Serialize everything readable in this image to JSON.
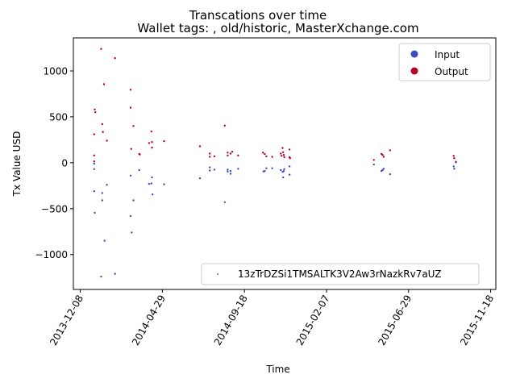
{
  "chart_data": {
    "type": "scatter",
    "title": "Transcations over time",
    "subtitle": "Wallet tags: , old/historic, MasterXchange.com",
    "xlabel": "Time",
    "ylabel": "Tx Value USD",
    "xlim": [
      "2013-11-26",
      "2015-11-27"
    ],
    "ylim": [
      -1380,
      1360
    ],
    "x_ticks": [
      "2013-12-08",
      "2014-04-29",
      "2014-09-18",
      "2015-02-07",
      "2015-06-29",
      "2015-11-18"
    ],
    "y_ticks": [
      -1000,
      -500,
      0,
      500,
      1000
    ],
    "grid": false,
    "legend_position": "top-right",
    "legend": [
      {
        "label": "Input",
        "color": "#3b4cc0"
      },
      {
        "label": "Output",
        "color": "#b40426"
      }
    ],
    "secondary_legend": {
      "position": "bottom-right",
      "label": "13zTrDZSi1TMSALTK3V2Aw3rNazkRv7aUZ",
      "color": "#2ca02c"
    },
    "series": [
      {
        "name": "Input",
        "color": "#3b4cc0",
        "points": [
          [
            "2014-01-01",
            -10
          ],
          [
            "2014-01-01",
            -70
          ],
          [
            "2014-01-01",
            -310
          ],
          [
            "2014-01-02",
            -545
          ],
          [
            "2014-01-13",
            -1240
          ],
          [
            "2014-01-15",
            -330
          ],
          [
            "2014-01-15",
            -410
          ],
          [
            "2014-01-19",
            -850
          ],
          [
            "2014-01-23",
            -240
          ],
          [
            "2014-02-06",
            -1210
          ],
          [
            "2014-03-05",
            -140
          ],
          [
            "2014-03-05",
            -580
          ],
          [
            "2014-03-07",
            -760
          ],
          [
            "2014-03-10",
            -410
          ],
          [
            "2014-03-20",
            -80
          ],
          [
            "2014-04-06",
            -230
          ],
          [
            "2014-04-10",
            -225
          ],
          [
            "2014-04-11",
            -160
          ],
          [
            "2014-04-12",
            -345
          ],
          [
            "2014-05-02",
            -235
          ],
          [
            "2014-07-03",
            -170
          ],
          [
            "2014-07-20",
            -85
          ],
          [
            "2014-07-20",
            -50
          ],
          [
            "2014-07-28",
            -75
          ],
          [
            "2014-08-15",
            -430
          ],
          [
            "2014-08-20",
            -75
          ],
          [
            "2014-08-20",
            -95
          ],
          [
            "2014-08-25",
            -120
          ],
          [
            "2014-08-25",
            -90
          ],
          [
            "2014-09-07",
            -65
          ],
          [
            "2014-10-21",
            -95
          ],
          [
            "2014-10-23",
            -90
          ],
          [
            "2014-10-26",
            -60
          ],
          [
            "2014-11-05",
            -60
          ],
          [
            "2014-11-20",
            -80
          ],
          [
            "2014-11-23",
            -100
          ],
          [
            "2014-11-24",
            -160
          ],
          [
            "2014-11-25",
            -90
          ],
          [
            "2014-11-26",
            -70
          ],
          [
            "2014-12-05",
            -130
          ],
          [
            "2014-12-05",
            -40
          ],
          [
            "2015-04-30",
            -20
          ],
          [
            "2015-05-13",
            -90
          ],
          [
            "2015-05-15",
            -80
          ],
          [
            "2015-05-17",
            -65
          ],
          [
            "2015-05-28",
            -125
          ],
          [
            "2015-09-15",
            -40
          ],
          [
            "2015-09-16",
            -65
          ],
          [
            "2015-09-19",
            5
          ]
        ]
      },
      {
        "name": "Output",
        "color": "#b40426",
        "points": [
          [
            "2014-01-01",
            80
          ],
          [
            "2014-01-01",
            15
          ],
          [
            "2014-01-01",
            310
          ],
          [
            "2014-01-02",
            580
          ],
          [
            "2014-01-03",
            550
          ],
          [
            "2014-01-13",
            1240
          ],
          [
            "2014-01-15",
            420
          ],
          [
            "2014-01-16",
            335
          ],
          [
            "2014-01-18",
            855
          ],
          [
            "2014-01-23",
            240
          ],
          [
            "2014-02-06",
            1140
          ],
          [
            "2014-03-05",
            795
          ],
          [
            "2014-03-05",
            600
          ],
          [
            "2014-03-06",
            150
          ],
          [
            "2014-03-10",
            400
          ],
          [
            "2014-03-20",
            95
          ],
          [
            "2014-03-21",
            90
          ],
          [
            "2014-04-06",
            215
          ],
          [
            "2014-04-10",
            340
          ],
          [
            "2014-04-11",
            225
          ],
          [
            "2014-04-11",
            165
          ],
          [
            "2014-05-02",
            235
          ],
          [
            "2014-07-03",
            180
          ],
          [
            "2014-07-20",
            100
          ],
          [
            "2014-07-20",
            65
          ],
          [
            "2014-07-28",
            70
          ],
          [
            "2014-08-15",
            405
          ],
          [
            "2014-08-20",
            110
          ],
          [
            "2014-08-20",
            80
          ],
          [
            "2014-08-25",
            100
          ],
          [
            "2014-08-28",
            120
          ],
          [
            "2014-09-07",
            80
          ],
          [
            "2014-10-20",
            110
          ],
          [
            "2014-10-23",
            95
          ],
          [
            "2014-10-26",
            70
          ],
          [
            "2014-11-05",
            65
          ],
          [
            "2014-11-20",
            100
          ],
          [
            "2014-11-21",
            75
          ],
          [
            "2014-11-23",
            160
          ],
          [
            "2014-11-24",
            115
          ],
          [
            "2014-11-25",
            85
          ],
          [
            "2014-11-26",
            60
          ],
          [
            "2014-12-05",
            145
          ],
          [
            "2014-12-05",
            60
          ],
          [
            "2014-12-06",
            50
          ],
          [
            "2015-04-30",
            30
          ],
          [
            "2015-05-13",
            95
          ],
          [
            "2015-05-15",
            85
          ],
          [
            "2015-05-17",
            65
          ],
          [
            "2015-05-28",
            135
          ],
          [
            "2015-09-15",
            75
          ],
          [
            "2015-09-16",
            50
          ],
          [
            "2015-09-19",
            10
          ]
        ]
      }
    ]
  }
}
